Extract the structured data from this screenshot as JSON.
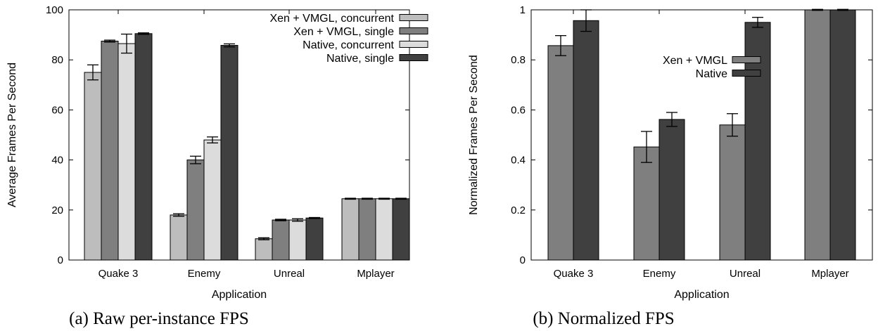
{
  "chart_data": [
    {
      "type": "bar",
      "caption": "(a) Raw per-instance FPS",
      "xlabel": "Application",
      "ylabel": "Average Frames Per Second",
      "ylim": [
        0,
        100
      ],
      "yticks": [
        0,
        20,
        40,
        60,
        80,
        100
      ],
      "categories": [
        "Quake 3",
        "Enemy",
        "Unreal",
        "Mplayer"
      ],
      "legend_position": "top-right",
      "series": [
        {
          "name": "Xen + VMGL, concurrent",
          "color": "#bdbdbd",
          "values": [
            75,
            18,
            8.5,
            24.5
          ],
          "errors": [
            3,
            0.5,
            0.4,
            0.2
          ]
        },
        {
          "name": "Xen + VMGL, single",
          "color": "#7f7f7f",
          "values": [
            87.5,
            40,
            16,
            24.5
          ],
          "errors": [
            0.4,
            1.5,
            0.3,
            0.2
          ]
        },
        {
          "name": "Native, concurrent",
          "color": "#dcdcdc",
          "values": [
            86.5,
            48,
            16,
            24.5
          ],
          "errors": [
            3.8,
            1.2,
            0.5,
            0.2
          ]
        },
        {
          "name": "Native, single",
          "color": "#404040",
          "values": [
            90.5,
            85.8,
            16.8,
            24.5
          ],
          "errors": [
            0.3,
            0.6,
            0.2,
            0.2
          ]
        }
      ]
    },
    {
      "type": "bar",
      "caption": "(b) Normalized FPS",
      "xlabel": "Application",
      "ylabel": "Normalized Frames Per Second",
      "ylim": [
        0,
        1
      ],
      "yticks": [
        0,
        0.2,
        0.4,
        0.6,
        0.8,
        1
      ],
      "categories": [
        "Quake 3",
        "Enemy",
        "Unreal",
        "Mplayer"
      ],
      "legend_position": "top-center",
      "series": [
        {
          "name": "Xen + VMGL",
          "color": "#7f7f7f",
          "values": [
            0.857,
            0.452,
            0.54,
            1.0
          ],
          "errors": [
            0.04,
            0.062,
            0.045,
            0.002
          ]
        },
        {
          "name": "Native",
          "color": "#404040",
          "values": [
            0.957,
            0.562,
            0.95,
            1.0
          ],
          "errors": [
            0.043,
            0.028,
            0.02,
            0.002
          ]
        }
      ]
    }
  ]
}
